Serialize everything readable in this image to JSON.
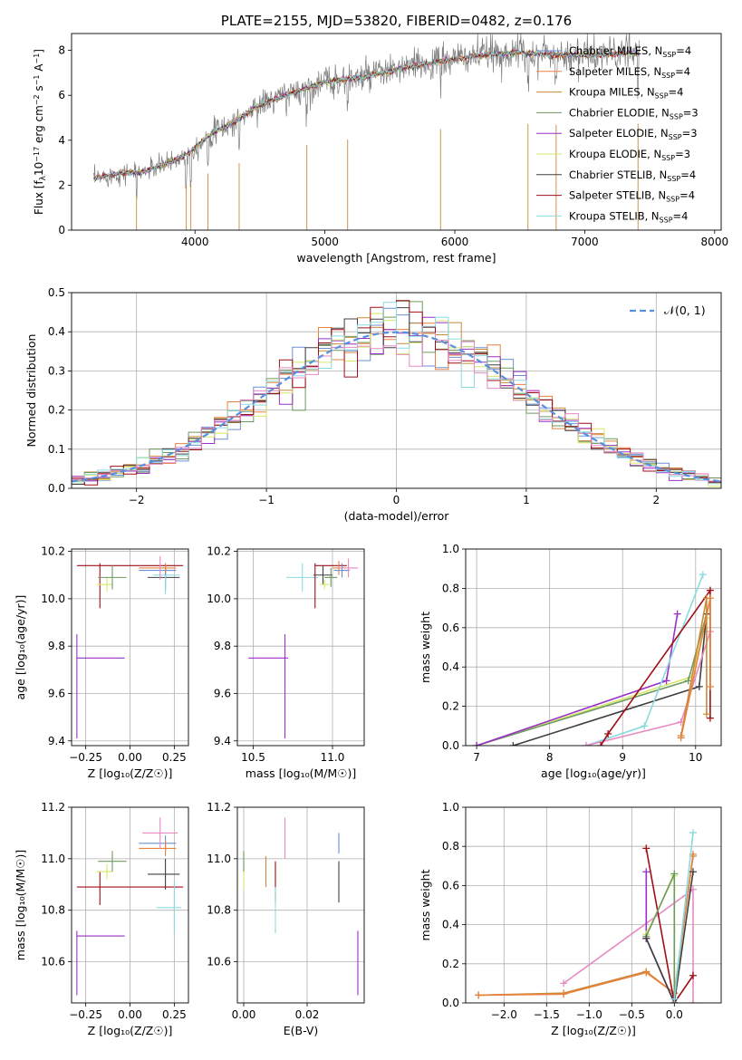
{
  "colors": {
    "Chabrier MILES": "#6b8fd6",
    "Salpeter MILES": "#e8823c",
    "Kroupa MILES": "#c98a3a",
    "Chabrier ELODIE": "#6f9a5f",
    "Salpeter ELODIE": "#9b30c8",
    "Kroupa ELODIE": "#d7e86a",
    "Chabrier STELIB": "#404040",
    "Salpeter STELIB": "#a00e18",
    "Kroupa STELIB": "#8adbe0",
    "pink": "#e78ac3",
    "normal": "#5a8fe0"
  },
  "chart_data": [
    {
      "type": "line",
      "title": "PLATE=2155, MJD=53820, FIBERID=0482, z=0.176",
      "xlabel": "wavelength [Angstrom, rest frame]",
      "ylabel": "Flux [f_λ 10^-17 erg cm^-2 s^-1 A^-1]",
      "xlim": [
        3050,
        8050
      ],
      "ylim": [
        0,
        8.75
      ],
      "xticks": [
        4000,
        5000,
        6000,
        7000,
        8000
      ],
      "yticks": [
        0,
        2,
        4,
        6,
        8
      ],
      "x_range_data": [
        3220,
        7420
      ],
      "continuum": [
        [
          3220,
          2.3
        ],
        [
          3400,
          2.5
        ],
        [
          3600,
          2.6
        ],
        [
          3800,
          3.0
        ],
        [
          3950,
          3.4
        ],
        [
          4100,
          4.2
        ],
        [
          4300,
          4.8
        ],
        [
          4500,
          5.6
        ],
        [
          4700,
          6.0
        ],
        [
          5000,
          6.6
        ],
        [
          5300,
          6.8
        ],
        [
          5600,
          7.2
        ],
        [
          5900,
          7.5
        ],
        [
          6200,
          7.8
        ],
        [
          6500,
          7.9
        ],
        [
          6800,
          7.8
        ],
        [
          7100,
          7.8
        ],
        [
          7420,
          7.9
        ]
      ],
      "absorption_lines": [
        3550,
        3933,
        3968,
        4100,
        4340,
        4861,
        5175,
        5890,
        6563,
        6780,
        7410
      ],
      "legend_loc": "upper right",
      "legend": [
        {
          "name": "Chabrier MILES, N",
          "sub": "SSP",
          "tail": "=4"
        },
        {
          "name": "Salpeter MILES, N",
          "sub": "SSP",
          "tail": "=4"
        },
        {
          "name": "Kroupa MILES, N",
          "sub": "SSP",
          "tail": "=4"
        },
        {
          "name": "Chabrier ELODIE, N",
          "sub": "SSP",
          "tail": "=3"
        },
        {
          "name": "Salpeter ELODIE, N",
          "sub": "SSP",
          "tail": "=3"
        },
        {
          "name": "Kroupa ELODIE, N",
          "sub": "SSP",
          "tail": "=3"
        },
        {
          "name": "Chabrier STELIB, N",
          "sub": "SSP",
          "tail": "=4"
        },
        {
          "name": "Salpeter STELIB, N",
          "sub": "SSP",
          "tail": "=4"
        },
        {
          "name": "Kroupa STELIB, N",
          "sub": "SSP",
          "tail": "=4"
        }
      ]
    },
    {
      "type": "histogram",
      "xlabel": "(data-model)/error",
      "ylabel": "Normed distribution",
      "xlim": [
        -2.5,
        2.5
      ],
      "ylim": [
        0,
        0.5
      ],
      "xticks": [
        -2,
        -1,
        0,
        1,
        2
      ],
      "yticks": [
        0.0,
        0.1,
        0.2,
        0.3,
        0.4,
        0.5
      ],
      "bin_width": 0.1,
      "legend_label": "𝒩(0, 1)",
      "legend_loc": "upper right",
      "grid": true
    },
    {
      "type": "errorbar",
      "xlabel": "Z [log₁₀(Z/Z☉)]",
      "ylabel": "age  [log₁₀(age/yr)]",
      "xlim": [
        -0.33,
        0.33
      ],
      "ylim": [
        9.38,
        10.21
      ],
      "xticks": [
        -0.25,
        0.0,
        0.25
      ],
      "yticks": [
        9.4,
        9.6,
        9.8,
        10.0,
        10.2
      ],
      "points": [
        {
          "series": "Salpeter ELODIE",
          "x": -0.3,
          "y": 9.75,
          "xerr": [
            0,
            0.27
          ],
          "yerr": [
            0.34,
            0.1
          ]
        },
        {
          "series": "Salpeter STELIB",
          "x": -0.17,
          "y": 10.14,
          "xerr": [
            0.13,
            0.47
          ],
          "yerr": [
            0.18,
            0.01
          ]
        },
        {
          "series": "Kroupa ELODIE",
          "x": -0.13,
          "y": 10.06,
          "xerr": [
            0.06,
            0.03
          ],
          "yerr": [
            0.03,
            0.03
          ]
        },
        {
          "series": "Chabrier ELODIE",
          "x": -0.1,
          "y": 10.09,
          "xerr": [
            0.08,
            0.08
          ],
          "yerr": [
            0.05,
            0.05
          ]
        },
        {
          "series": "Chabrier STELIB",
          "x": 0.2,
          "y": 10.09,
          "xerr": [
            0.1,
            0.08
          ],
          "yerr": [
            0.05,
            0.05
          ]
        },
        {
          "series": "Kroupa STELIB",
          "x": 0.2,
          "y": 10.1,
          "xerr": [
            0.07,
            0.08
          ],
          "yerr": [
            0.08,
            0.05
          ]
        },
        {
          "series": "Chabrier MILES",
          "x": 0.2,
          "y": 10.12,
          "xerr": [
            0.15,
            0.06
          ],
          "yerr": [
            0.02,
            0.02
          ]
        },
        {
          "series": "Salpeter MILES",
          "x": 0.2,
          "y": 10.13,
          "xerr": [
            0.15,
            0.06
          ],
          "yerr": [
            0.02,
            0.02
          ]
        },
        {
          "series": "pink",
          "x": 0.17,
          "y": 10.13,
          "xerr": [
            0.0,
            0.0
          ],
          "yerr": [
            0.05,
            0.05
          ]
        }
      ]
    },
    {
      "type": "errorbar",
      "xlabel": "mass [log₁₀(M/M☉)]",
      "ylim": [
        9.38,
        10.21
      ],
      "xlim": [
        10.4,
        11.2
      ],
      "xticks": [
        10.5,
        11.0
      ],
      "yticks": [
        9.4,
        9.6,
        9.8,
        10.0,
        10.2
      ],
      "points": [
        {
          "series": "Salpeter ELODIE",
          "x": 10.7,
          "y": 9.75,
          "xerr": [
            0.23,
            0.02
          ],
          "yerr": [
            0.34,
            0.1
          ]
        },
        {
          "series": "Kroupa STELIB",
          "x": 10.81,
          "y": 10.09,
          "xerr": [
            0.1,
            0.1
          ],
          "yerr": [
            0.06,
            0.06
          ]
        },
        {
          "series": "Salpeter STELIB",
          "x": 10.89,
          "y": 10.14,
          "xerr": [
            0.0,
            0.2
          ],
          "yerr": [
            0.18,
            0.01
          ]
        },
        {
          "series": "Chabrier STELIB",
          "x": 10.94,
          "y": 10.1,
          "xerr": [
            0.06,
            0.06
          ],
          "yerr": [
            0.04,
            0.04
          ]
        },
        {
          "series": "Chabrier ELODIE",
          "x": 10.99,
          "y": 10.09,
          "xerr": [
            0.04,
            0.04
          ],
          "yerr": [
            0.04,
            0.04
          ]
        },
        {
          "series": "Kroupa ELODIE",
          "x": 10.95,
          "y": 10.06,
          "xerr": [
            0.03,
            0.03
          ],
          "yerr": [
            0.02,
            0.02
          ]
        },
        {
          "series": "Chabrier MILES",
          "x": 11.06,
          "y": 10.12,
          "xerr": [
            0.05,
            0.05
          ],
          "yerr": [
            0.03,
            0.03
          ]
        },
        {
          "series": "Salpeter MILES",
          "x": 11.04,
          "y": 10.13,
          "xerr": [
            0.04,
            0.04
          ],
          "yerr": [
            0.03,
            0.03
          ]
        },
        {
          "series": "pink",
          "x": 11.1,
          "y": 10.13,
          "xerr": [
            0.06,
            0.06
          ],
          "yerr": [
            0.04,
            0.04
          ]
        }
      ]
    },
    {
      "type": "line",
      "xlabel": "age  [log₁₀(age/yr)]",
      "ylabel": "mass weight",
      "xlim": [
        6.85,
        10.35
      ],
      "ylim": [
        0,
        1.0
      ],
      "xticks": [
        7,
        8,
        9,
        10
      ],
      "yticks": [
        0.0,
        0.2,
        0.4,
        0.6,
        0.8,
        1.0
      ],
      "series": [
        {
          "name": "Kroupa ELODIE",
          "points": [
            [
              7.0,
              0.0
            ],
            [
              9.95,
              0.35
            ],
            [
              10.15,
              0.65
            ]
          ]
        },
        {
          "name": "Chabrier ELODIE",
          "points": [
            [
              7.0,
              0.0
            ],
            [
              9.9,
              0.33
            ],
            [
              10.15,
              0.67
            ]
          ]
        },
        {
          "name": "Salpeter ELODIE",
          "points": [
            [
              7.0,
              0.0
            ],
            [
              9.6,
              0.33
            ],
            [
              9.75,
              0.67
            ]
          ]
        },
        {
          "name": "Chabrier STELIB",
          "points": [
            [
              7.5,
              0.0
            ],
            [
              10.05,
              0.3
            ],
            [
              10.15,
              0.67
            ]
          ]
        },
        {
          "name": "Kroupa STELIB",
          "points": [
            [
              8.5,
              0.0
            ],
            [
              9.3,
              0.1
            ],
            [
              10.1,
              0.87
            ]
          ]
        },
        {
          "name": "pink",
          "points": [
            [
              8.5,
              0.0
            ],
            [
              9.8,
              0.12
            ],
            [
              10.2,
              0.58
            ]
          ]
        },
        {
          "name": "Salpeter STELIB",
          "points": [
            [
              8.7,
              0.0
            ],
            [
              8.8,
              0.06
            ],
            [
              10.2,
              0.79
            ],
            [
              10.2,
              0.14
            ]
          ]
        },
        {
          "name": "Kroupa MILES",
          "points": [
            [
              9.8,
              0.05
            ],
            [
              10.15,
              0.75
            ],
            [
              10.15,
              0.16
            ]
          ]
        },
        {
          "name": "Salpeter MILES",
          "points": [
            [
              9.8,
              0.04
            ],
            [
              10.2,
              0.75
            ],
            [
              10.2,
              0.3
            ]
          ]
        }
      ]
    },
    {
      "type": "errorbar",
      "xlabel": "Z [log₁₀(Z/Z☉)]",
      "ylabel": "mass [log₁₀(M/M☉)]",
      "xlim": [
        -0.33,
        0.33
      ],
      "ylim": [
        10.44,
        11.2
      ],
      "xticks": [
        -0.25,
        0.0,
        0.25
      ],
      "yticks": [
        10.6,
        10.8,
        11.0,
        11.2
      ],
      "points": [
        {
          "series": "Salpeter ELODIE",
          "x": -0.3,
          "y": 10.7,
          "xerr": [
            0.0,
            0.27
          ],
          "yerr": [
            0.23,
            0.02
          ]
        },
        {
          "series": "Salpeter STELIB",
          "x": -0.17,
          "y": 10.89,
          "xerr": [
            0.13,
            0.47
          ],
          "yerr": [
            0.07,
            0.06
          ]
        },
        {
          "series": "Kroupa ELODIE",
          "x": -0.13,
          "y": 10.95,
          "xerr": [
            0.06,
            0.03
          ],
          "yerr": [
            0.03,
            0.03
          ]
        },
        {
          "series": "Chabrier ELODIE",
          "x": -0.1,
          "y": 10.99,
          "xerr": [
            0.08,
            0.08
          ],
          "yerr": [
            0.04,
            0.04
          ]
        },
        {
          "series": "Chabrier STELIB",
          "x": 0.2,
          "y": 10.94,
          "xerr": [
            0.1,
            0.08
          ],
          "yerr": [
            0.06,
            0.06
          ]
        },
        {
          "series": "Kroupa STELIB",
          "x": 0.25,
          "y": 10.81,
          "xerr": [
            0.1,
            0.04
          ],
          "yerr": [
            0.1,
            0.1
          ]
        },
        {
          "series": "Chabrier MILES",
          "x": 0.2,
          "y": 11.06,
          "xerr": [
            0.15,
            0.06
          ],
          "yerr": [
            0.03,
            0.03
          ]
        },
        {
          "series": "Salpeter MILES",
          "x": 0.2,
          "y": 11.04,
          "xerr": [
            0.15,
            0.06
          ],
          "yerr": [
            0.03,
            0.03
          ]
        },
        {
          "series": "pink",
          "x": 0.17,
          "y": 11.1,
          "xerr": [
            0.1,
            0.1
          ],
          "yerr": [
            0.06,
            0.06
          ]
        }
      ]
    },
    {
      "type": "errorbar",
      "xlabel": "E(B-V)",
      "xlim": [
        -0.002,
        0.038
      ],
      "ylim": [
        10.44,
        11.2
      ],
      "xticks": [
        0.0,
        0.02
      ],
      "yticks": [
        10.6,
        10.8,
        11.0,
        11.2
      ],
      "points": [
        {
          "series": "Kroupa ELODIE",
          "x": 0.0,
          "y": 10.95,
          "yerr": [
            0.07,
            0.07
          ]
        },
        {
          "series": "Chabrier ELODIE",
          "x": 0.0,
          "y": 10.99,
          "yerr": [
            0.04,
            0.04
          ]
        },
        {
          "series": "Kroupa MILES",
          "x": 0.007,
          "y": 10.95,
          "yerr": [
            0.06,
            0.06
          ]
        },
        {
          "series": "Salpeter STELIB",
          "x": 0.01,
          "y": 10.89,
          "yerr": [
            0.06,
            0.1
          ]
        },
        {
          "series": "Kroupa STELIB",
          "x": 0.01,
          "y": 10.81,
          "yerr": [
            0.1,
            0.08
          ]
        },
        {
          "series": "pink",
          "x": 0.013,
          "y": 11.08,
          "yerr": [
            0.08,
            0.08
          ]
        },
        {
          "series": "Chabrier MILES",
          "x": 0.03,
          "y": 11.06,
          "yerr": [
            0.04,
            0.04
          ]
        },
        {
          "series": "Chabrier STELIB",
          "x": 0.03,
          "y": 10.91,
          "yerr": [
            0.08,
            0.08
          ]
        },
        {
          "series": "Salpeter ELODIE",
          "x": 0.036,
          "y": 10.62,
          "yerr": [
            0.15,
            0.1
          ]
        }
      ]
    },
    {
      "type": "line",
      "xlabel": "Z [log₁₀(Z/Z☉)]",
      "ylabel": "mass weight",
      "xlim": [
        -2.45,
        0.55
      ],
      "ylim": [
        0,
        1.0
      ],
      "xticks": [
        -2.0,
        -1.5,
        -1.0,
        -0.5,
        0.0
      ],
      "yticks": [
        0.0,
        0.2,
        0.4,
        0.6,
        0.8,
        1.0
      ],
      "series": [
        {
          "name": "Kroupa MILES",
          "points": [
            [
              -2.3,
              0.04
            ],
            [
              -1.3,
              0.05
            ],
            [
              -0.33,
              0.16
            ],
            [
              0.0,
              0.05
            ],
            [
              0.22,
              0.75
            ]
          ]
        },
        {
          "name": "Salpeter MILES",
          "points": [
            [
              -2.3,
              0.04
            ],
            [
              -1.3,
              0.045
            ],
            [
              -0.33,
              0.155
            ],
            [
              0.0,
              0.05
            ],
            [
              0.22,
              0.76
            ]
          ]
        },
        {
          "name": "pink",
          "points": [
            [
              -1.3,
              0.1
            ],
            [
              0.22,
              0.58
            ],
            [
              0.22,
              0.0
            ]
          ]
        },
        {
          "name": "Salpeter STELIB",
          "points": [
            [
              -0.33,
              0.79
            ],
            [
              0.0,
              0.0
            ],
            [
              0.22,
              0.14
            ]
          ]
        },
        {
          "name": "Salpeter ELODIE",
          "points": [
            [
              -0.33,
              0.67
            ],
            [
              -0.33,
              0.33
            ],
            [
              0.0,
              0.0
            ]
          ]
        },
        {
          "name": "Kroupa ELODIE",
          "points": [
            [
              -0.33,
              0.35
            ],
            [
              0.0,
              0.65
            ],
            [
              0.0,
              0.0
            ]
          ]
        },
        {
          "name": "Chabrier ELODIE",
          "points": [
            [
              -0.33,
              0.34
            ],
            [
              0.0,
              0.66
            ],
            [
              0.0,
              0.0
            ]
          ]
        },
        {
          "name": "Chabrier STELIB",
          "points": [
            [
              -0.33,
              0.33
            ],
            [
              0.0,
              0.0
            ],
            [
              0.22,
              0.67
            ]
          ]
        },
        {
          "name": "Kroupa STELIB",
          "points": [
            [
              0.0,
              0.02
            ],
            [
              0.22,
              0.87
            ]
          ]
        }
      ]
    }
  ]
}
